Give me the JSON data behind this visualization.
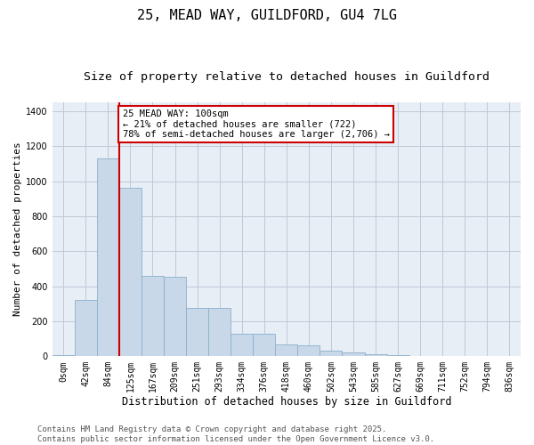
{
  "title1": "25, MEAD WAY, GUILDFORD, GU4 7LG",
  "title2": "Size of property relative to detached houses in Guildford",
  "xlabel": "Distribution of detached houses by size in Guildford",
  "ylabel": "Number of detached properties",
  "categories": [
    "0sqm",
    "42sqm",
    "84sqm",
    "125sqm",
    "167sqm",
    "209sqm",
    "251sqm",
    "293sqm",
    "334sqm",
    "376sqm",
    "418sqm",
    "460sqm",
    "502sqm",
    "543sqm",
    "585sqm",
    "627sqm",
    "669sqm",
    "711sqm",
    "752sqm",
    "794sqm",
    "836sqm"
  ],
  "bar_heights": [
    5,
    320,
    1130,
    960,
    460,
    455,
    275,
    275,
    130,
    130,
    65,
    60,
    30,
    20,
    10,
    5,
    3,
    3,
    3,
    0,
    0
  ],
  "bar_color": "#c8d8e8",
  "bar_edge_color": "#8ab0cc",
  "vline_color": "#cc0000",
  "annotation_text": "25 MEAD WAY: 100sqm\n← 21% of detached houses are smaller (722)\n78% of semi-detached houses are larger (2,706) →",
  "annotation_box_color": "#ffffff",
  "annotation_border_color": "#cc0000",
  "ylim": [
    0,
    1450
  ],
  "yticks": [
    0,
    200,
    400,
    600,
    800,
    1000,
    1200,
    1400
  ],
  "grid_color": "#c0c8d8",
  "bg_color": "#e8eef6",
  "footer": "Contains HM Land Registry data © Crown copyright and database right 2025.\nContains public sector information licensed under the Open Government Licence v3.0.",
  "title1_fontsize": 11,
  "title2_fontsize": 9.5,
  "xlabel_fontsize": 8.5,
  "ylabel_fontsize": 8,
  "tick_fontsize": 7,
  "annotation_fontsize": 7.5,
  "footer_fontsize": 6.5
}
